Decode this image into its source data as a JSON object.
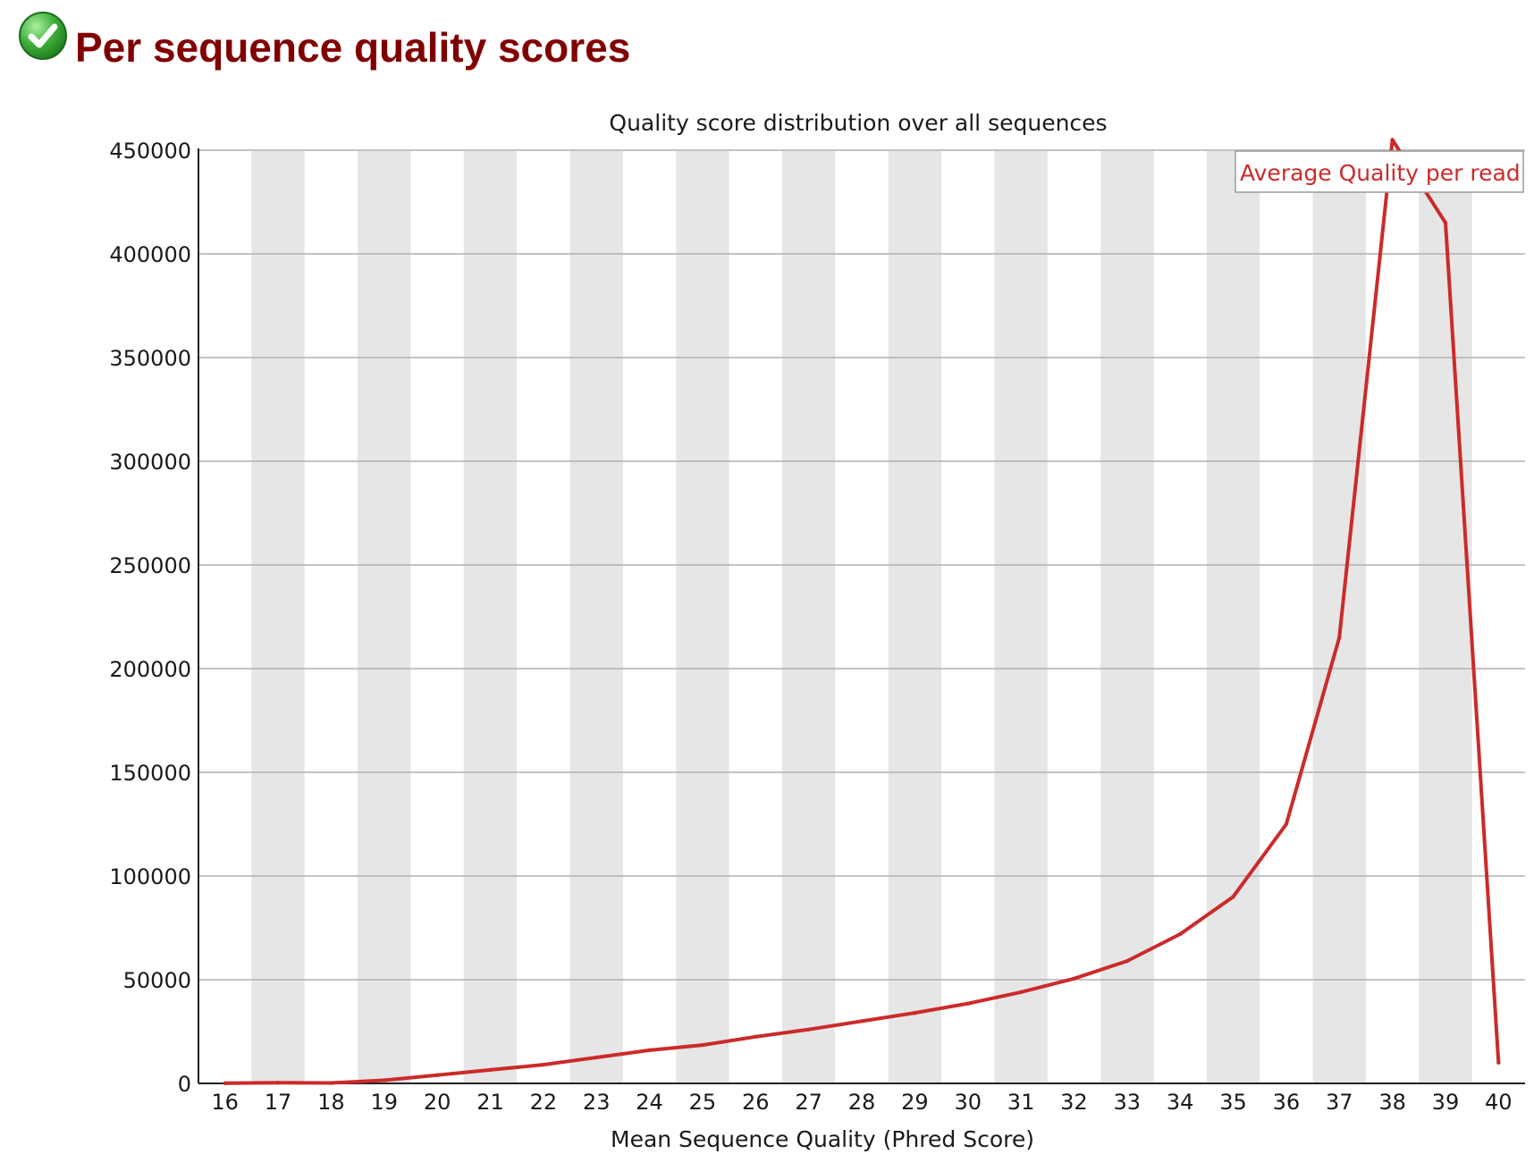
{
  "header": {
    "status_icon": "check-circle-icon",
    "status": "pass",
    "title": "Per sequence quality scores"
  },
  "colors": {
    "title": "#800000",
    "series": "#cc2a2a",
    "band": "#e6e6e6",
    "grid": "#b0b0b0"
  },
  "chart_data": {
    "type": "line",
    "title": "Quality score distribution over all sequences",
    "xlabel": "Mean Sequence Quality (Phred Score)",
    "ylabel": "",
    "x": [
      16,
      17,
      18,
      19,
      20,
      21,
      22,
      23,
      24,
      25,
      26,
      27,
      28,
      29,
      30,
      31,
      32,
      33,
      34,
      35,
      36,
      37,
      38,
      39,
      40
    ],
    "x_tick_labels": [
      "16",
      "17",
      "18",
      "19",
      "20",
      "21",
      "22",
      "23",
      "24",
      "25",
      "26",
      "27",
      "28",
      "29",
      "30",
      "31",
      "32",
      "33",
      "34",
      "35",
      "36",
      "37",
      "38",
      "39",
      "40"
    ],
    "y_tick_labels": [
      "0",
      "50000",
      "100000",
      "150000",
      "200000",
      "250000",
      "300000",
      "350000",
      "400000",
      "450000"
    ],
    "ylim": [
      0,
      450000
    ],
    "grid": true,
    "alternating_bands": true,
    "legend": {
      "position": "top-right",
      "entries": [
        "Average Quality per read"
      ]
    },
    "series": [
      {
        "name": "Average Quality per read",
        "color": "#cc2a2a",
        "values": [
          100,
          300,
          200,
          1500,
          4000,
          6500,
          9000,
          12500,
          16000,
          18500,
          22500,
          26000,
          30000,
          34000,
          38500,
          44000,
          50500,
          59000,
          72000,
          90000,
          125000,
          215000,
          455000,
          415000,
          10000
        ]
      }
    ]
  }
}
